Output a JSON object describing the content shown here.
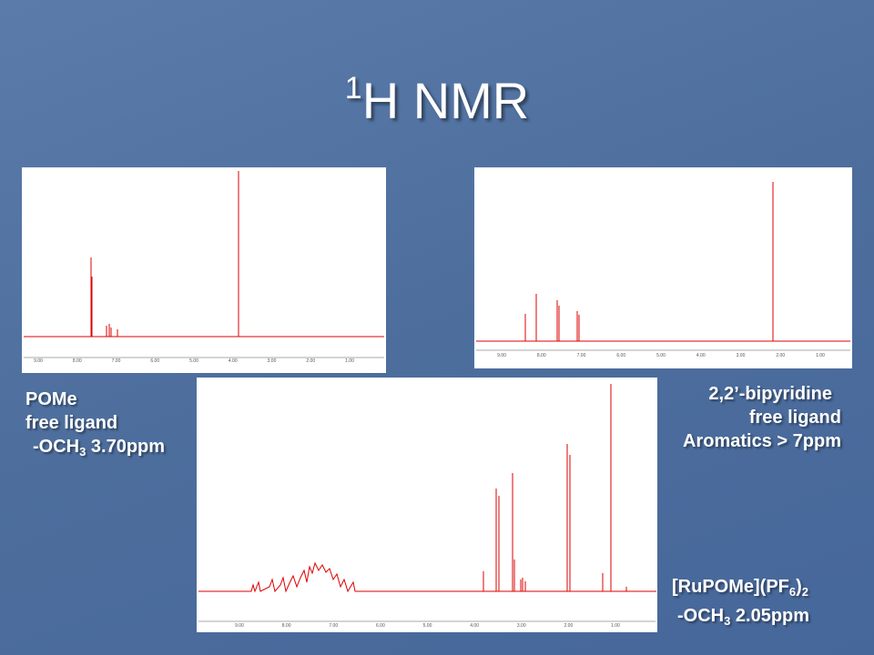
{
  "title": {
    "sup": "1",
    "text": "H NMR"
  },
  "spectra": [
    {
      "x_ticks": [
        "9.00",
        "8.00",
        "7.00",
        "6.00",
        "5.00",
        "4.00",
        "3.00",
        "2.00",
        "1.00"
      ]
    },
    {
      "x_ticks": [
        "9.00",
        "8.00",
        "7.00",
        "6.00",
        "5.00",
        "4.00",
        "3.00",
        "2.00",
        "1.00"
      ]
    },
    {
      "x_ticks": [
        "9.00",
        "8.00",
        "7.00",
        "6.00",
        "5.00",
        "4.00",
        "3.00",
        "2.00",
        "1.00"
      ]
    }
  ],
  "captions": {
    "pome": {
      "line1": "POMe",
      "line2": "free ligand",
      "line3": {
        "a": "-OCH",
        "sub": "3",
        "b": " 3.70ppm"
      }
    },
    "bipy": {
      "line1": "2,2’-bipyridine",
      "line2": "free ligand",
      "line3": "Aromatics > 7ppm"
    },
    "complex": {
      "line1": {
        "a": "[RuPOMe](PF",
        "sub1": "6",
        "b": ")",
        "sub2": "2"
      },
      "line2": {
        "a": "-OCH",
        "sub": "3",
        "b": " 2.05ppm"
      }
    }
  }
}
